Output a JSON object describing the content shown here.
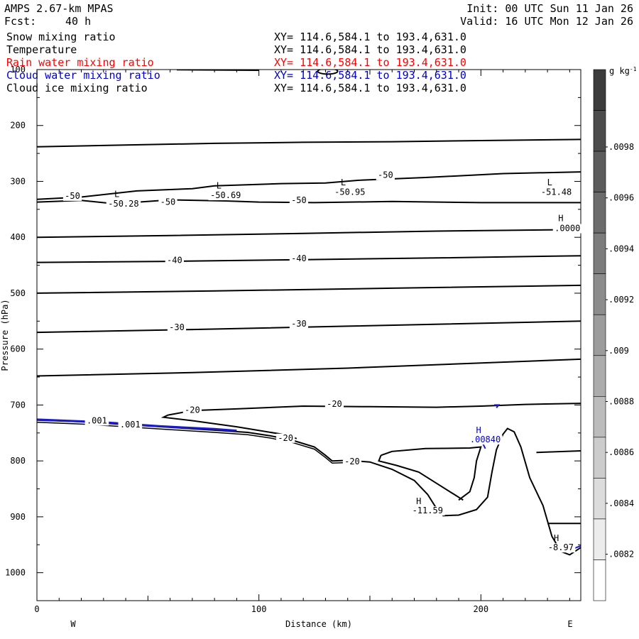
{
  "header": {
    "model": "AMPS 2.67-km MPAS",
    "fcst_label": "Fcst:",
    "fcst_value": "40 h",
    "init": "Init: 00 UTC Sun 11 Jan 26",
    "valid": "Valid: 16 UTC Mon 12 Jan 26"
  },
  "fields": [
    {
      "name": "Snow mixing ratio",
      "xy": "XY= 114.6,584.1 to 193.4,631.0",
      "color": "#000000"
    },
    {
      "name": "Temperature",
      "xy": "XY= 114.6,584.1 to 193.4,631.0",
      "color": "#000000"
    },
    {
      "name": "Rain water mixing ratio",
      "xy": "XY= 114.6,584.1 to 193.4,631.0",
      "color": "#ff0000"
    },
    {
      "name": "Cloud water mixing ratio",
      "xy": "XY= 114.6,584.1 to 193.4,631.0",
      "color": "#0000cc"
    },
    {
      "name": "Cloud ice mixing ratio",
      "xy": "XY= 114.6,584.1 to 193.4,631.0",
      "color": "#000000"
    }
  ],
  "chart_data": {
    "type": "cross-section contour",
    "xlabel": "Distance (km)",
    "ylabel": "Pressure (hPa)",
    "xlim": [
      0,
      245
    ],
    "ylim": [
      1050,
      100
    ],
    "x_ticks": [
      0,
      100,
      200
    ],
    "y_ticks": [
      100,
      200,
      300,
      400,
      500,
      600,
      700,
      800,
      900,
      1000
    ],
    "direction_left": "W",
    "direction_right": "E",
    "colorbar": {
      "unit": "g kg",
      "unit_sup": "-1",
      "ticks": [
        ".0098",
        ".0096",
        ".0094",
        ".0092",
        ".009",
        ".0088",
        ".0086",
        ".0084",
        ".0082"
      ],
      "shades": [
        "#3c3c3c",
        "#4c4c4c",
        "#5c5c5c",
        "#6c6c6c",
        "#7c7c7c",
        "#8c8c8c",
        "#9c9c9c",
        "#acacac",
        "#bcbcbc",
        "#cccccc",
        "#dcdcdc",
        "#ececec",
        "#ffffff"
      ]
    },
    "isotherms": [
      {
        "level": -50,
        "points": [
          [
            0,
            337
          ],
          [
            20,
            334
          ],
          [
            35,
            340
          ],
          [
            60,
            333
          ],
          [
            85,
            335
          ],
          [
            100,
            337
          ],
          [
            125,
            338
          ],
          [
            160,
            336
          ],
          [
            200,
            338
          ],
          [
            245,
            338
          ]
        ]
      },
      {
        "level": -50,
        "points": [
          [
            0,
            332
          ],
          [
            20,
            328
          ],
          [
            45,
            317
          ],
          [
            70,
            313
          ],
          [
            80,
            308
          ],
          [
            110,
            304
          ],
          [
            130,
            303
          ],
          [
            145,
            298
          ],
          [
            175,
            293
          ],
          [
            210,
            286
          ],
          [
            245,
            283
          ]
        ]
      },
      {
        "level": -50,
        "points": [
          [
            0,
            238
          ],
          [
            40,
            235
          ],
          [
            80,
            232
          ],
          [
            120,
            230
          ],
          [
            160,
            229
          ],
          [
            200,
            227
          ],
          [
            245,
            225
          ]
        ]
      },
      {
        "level": -40,
        "points": [
          [
            0,
            400
          ],
          [
            60,
            397
          ],
          [
            120,
            393
          ],
          [
            180,
            389
          ],
          [
            245,
            386
          ]
        ]
      },
      {
        "level": -40,
        "points": [
          [
            0,
            445
          ],
          [
            60,
            443
          ],
          [
            120,
            440
          ],
          [
            180,
            437
          ],
          [
            245,
            433
          ]
        ]
      },
      {
        "level": -30,
        "points": [
          [
            0,
            500
          ],
          [
            80,
            496
          ],
          [
            160,
            491
          ],
          [
            245,
            486
          ]
        ]
      },
      {
        "level": -30,
        "points": [
          [
            0,
            570
          ],
          [
            70,
            565
          ],
          [
            140,
            559
          ],
          [
            245,
            550
          ]
        ]
      },
      {
        "level": -30,
        "points": [
          [
            0,
            648
          ],
          [
            70,
            642
          ],
          [
            140,
            634
          ],
          [
            245,
            618
          ]
        ]
      },
      {
        "level": -20,
        "points": [
          [
            59,
            718
          ],
          [
            70,
            710
          ],
          [
            90,
            707
          ],
          [
            120,
            702
          ],
          [
            150,
            703
          ],
          [
            180,
            704
          ],
          [
            200,
            702
          ],
          [
            220,
            699
          ],
          [
            245,
            697
          ]
        ]
      },
      {
        "level": -20,
        "points": [
          [
            59,
            718
          ],
          [
            57,
            722
          ],
          [
            70,
            728
          ],
          [
            90,
            739
          ],
          [
            110,
            752
          ],
          [
            117,
            760
          ]
        ]
      },
      {
        "level": -20,
        "points": [
          [
            155,
            790
          ],
          [
            160,
            783
          ],
          [
            175,
            778
          ],
          [
            195,
            777
          ],
          [
            200,
            775
          ],
          [
            198,
            800
          ],
          [
            197,
            830
          ],
          [
            195,
            855
          ],
          [
            190,
            870
          ]
        ]
      },
      {
        "level": -20,
        "points": [
          [
            155,
            790
          ],
          [
            154,
            800
          ],
          [
            162,
            808
          ],
          [
            172,
            820
          ],
          [
            180,
            840
          ],
          [
            188,
            860
          ],
          [
            192,
            870
          ]
        ]
      },
      {
        "level": -20,
        "points": [
          [
            225,
            785
          ],
          [
            245,
            782
          ]
        ]
      },
      {
        "level": -20,
        "points": [
          [
            230,
            912
          ],
          [
            245,
            912
          ]
        ]
      }
    ],
    "terrain": [
      [
        0,
        727
      ],
      [
        20,
        730
      ],
      [
        40,
        735
      ],
      [
        60,
        740
      ],
      [
        80,
        745
      ],
      [
        95,
        749
      ],
      [
        105,
        755
      ],
      [
        115,
        763
      ],
      [
        125,
        775
      ],
      [
        130,
        790
      ],
      [
        133,
        800
      ],
      [
        140,
        799
      ],
      [
        150,
        802
      ],
      [
        160,
        815
      ],
      [
        170,
        835
      ],
      [
        176,
        860
      ],
      [
        180,
        885
      ],
      [
        183,
        898
      ],
      [
        190,
        897
      ],
      [
        198,
        887
      ],
      [
        203,
        865
      ],
      [
        205,
        820
      ],
      [
        207,
        780
      ],
      [
        210,
        752
      ],
      [
        212,
        742
      ],
      [
        215,
        748
      ],
      [
        218,
        775
      ],
      [
        222,
        830
      ],
      [
        228,
        880
      ],
      [
        232,
        935
      ],
      [
        236,
        962
      ],
      [
        240,
        968
      ],
      [
        245,
        955
      ]
    ],
    "cloud_water": [
      [
        0,
        726
      ],
      [
        30,
        731
      ],
      [
        55,
        738
      ],
      [
        80,
        743
      ],
      [
        90,
        746
      ]
    ],
    "labels": [
      {
        "text": "-50",
        "x": 16,
        "y": 331,
        "color": "#000000"
      },
      {
        "text": "-50",
        "x": 59,
        "y": 342,
        "color": "#000000"
      },
      {
        "text": "-50",
        "x": 118,
        "y": 339,
        "color": "#000000"
      },
      {
        "text": "-50",
        "x": 157,
        "y": 294,
        "color": "#000000"
      },
      {
        "text": "-40",
        "x": 62,
        "y": 446,
        "color": "#000000"
      },
      {
        "text": "-40",
        "x": 118,
        "y": 443,
        "color": "#000000"
      },
      {
        "text": "-30",
        "x": 63,
        "y": 566,
        "color": "#000000"
      },
      {
        "text": "-30",
        "x": 118,
        "y": 560,
        "color": "#000000"
      },
      {
        "text": "-20",
        "x": 70,
        "y": 714,
        "color": "#000000"
      },
      {
        "text": "-20",
        "x": 134,
        "y": 703,
        "color": "#000000"
      },
      {
        "text": "-20",
        "x": 112,
        "y": 764,
        "color": "#000000"
      },
      {
        "text": "-20",
        "x": 142,
        "y": 806,
        "color": "#000000"
      },
      {
        "text": ".001",
        "x": 27,
        "y": 733,
        "color": "#000000"
      },
      {
        "text": ".001",
        "x": 42,
        "y": 740,
        "color": "#000000"
      },
      {
        "text": "L",
        "x": 36,
        "y": 328,
        "color": "#000000"
      },
      {
        "text": "-50.28",
        "x": 39,
        "y": 345,
        "color": "#000000"
      },
      {
        "text": "L",
        "x": 82,
        "y": 313,
        "color": "#000000"
      },
      {
        "text": "-50.69",
        "x": 85,
        "y": 330,
        "color": "#000000"
      },
      {
        "text": "L",
        "x": 138,
        "y": 307,
        "color": "#000000"
      },
      {
        "text": "-50.95",
        "x": 141,
        "y": 324,
        "color": "#000000"
      },
      {
        "text": "L",
        "x": 231,
        "y": 307,
        "color": "#000000"
      },
      {
        "text": "-51.48",
        "x": 234,
        "y": 324,
        "color": "#000000"
      },
      {
        "text": "H",
        "x": 236,
        "y": 371,
        "color": "#000000"
      },
      {
        "text": ".0000",
        "x": 239,
        "y": 389,
        "color": "#000000"
      },
      {
        "text": "H",
        "x": 172,
        "y": 877,
        "color": "#000000"
      },
      {
        "text": "-11.59",
        "x": 176,
        "y": 894,
        "color": "#000000"
      },
      {
        "text": "H",
        "x": 234,
        "y": 943,
        "color": "#000000"
      },
      {
        "text": "-8.97",
        "x": 236,
        "y": 960,
        "color": "#000000"
      },
      {
        "text": "H",
        "x": 199,
        "y": 750,
        "color": "#0000cc"
      },
      {
        "text": ".00840",
        "x": 202,
        "y": 767,
        "color": "#0000cc"
      }
    ]
  }
}
